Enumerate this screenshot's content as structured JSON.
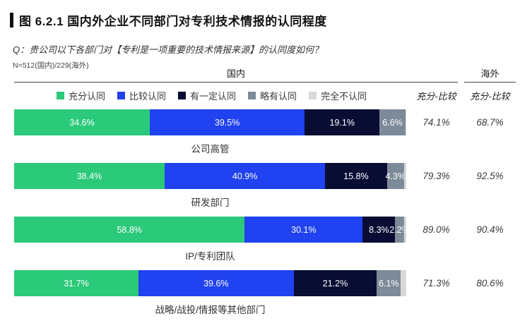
{
  "figure": {
    "title": "图 6.2.1 国内外企业不同部门对专利技术情报的认同程度",
    "question": "Q：贵公司以下各部门对【专利是一项重要的技术情报来源】的认同度如何？",
    "sample_note": "N=512(国内)/229(海外)"
  },
  "groups": {
    "domestic_label": "国内",
    "overseas_label": "海外",
    "domestic_metric_label": "充分-比较",
    "overseas_metric_label": "充分-比较"
  },
  "colors": {
    "title_marker": "#111111",
    "fully_agree": "#2BC97A",
    "somewhat_agree": "#2042F0",
    "some_agree": "#0A0D33",
    "slightly_agree": "#7D8A99",
    "not_agree": "#D8D8D8"
  },
  "chart_data": {
    "type": "bar",
    "subtype": "horizontal-stacked-percentage",
    "title": "图 6.2.1 国内外企业不同部门对专利技术情报的认同程度",
    "legend_position": "top",
    "xlim": [
      0,
      100
    ],
    "categories": [
      "公司高管",
      "研发部门",
      "IP/专利团队",
      "战略/战投/情报等其他部门"
    ],
    "series": [
      {
        "name": "充分认同",
        "color": "#2BC97A",
        "values": [
          34.6,
          38.4,
          58.8,
          31.7
        ],
        "show_label": true
      },
      {
        "name": "比较认同",
        "color": "#2042F0",
        "values": [
          39.5,
          40.9,
          30.1,
          39.6
        ],
        "show_label": true
      },
      {
        "name": "有一定认同",
        "color": "#0A0D33",
        "values": [
          19.1,
          15.8,
          8.3,
          21.2
        ],
        "show_label": true
      },
      {
        "name": "略有认同",
        "color": "#7D8A99",
        "values": [
          6.6,
          4.3,
          2.2,
          6.1
        ],
        "show_label": true
      },
      {
        "name": "完全不认同",
        "color": "#D8D8D8",
        "values": [
          0.2,
          0.6,
          0.6,
          1.4
        ],
        "show_label": false
      }
    ],
    "summary": {
      "header": "充分-比较",
      "domestic": [
        "74.1%",
        "79.3%",
        "89.0%",
        "71.3%"
      ],
      "overseas": [
        "68.7%",
        "92.5%",
        "90.4%",
        "80.6%"
      ]
    }
  }
}
